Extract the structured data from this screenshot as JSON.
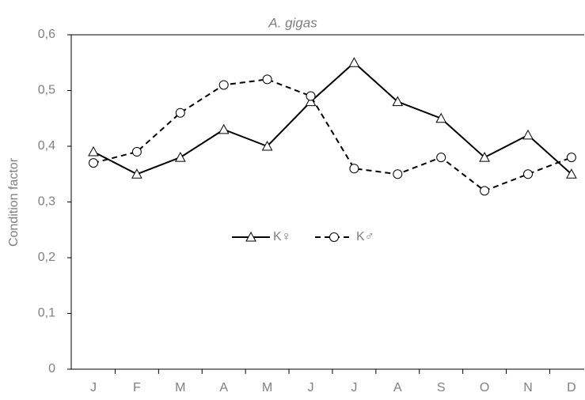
{
  "chart_data": {
    "type": "line",
    "title": "A. gigas",
    "y_label": "Condition factor",
    "categories": [
      "J",
      "F",
      "M",
      "A",
      "M",
      "J",
      "J",
      "A",
      "S",
      "O",
      "N",
      "D"
    ],
    "series": [
      {
        "name": "K♀",
        "color": "#000000",
        "marker": "triangle",
        "dashed": false,
        "values": [
          0.39,
          0.35,
          0.38,
          0.43,
          0.4,
          0.48,
          0.55,
          0.48,
          0.45,
          0.38,
          0.42,
          0.35
        ]
      },
      {
        "name": "K♂",
        "color": "#000000",
        "marker": "circle",
        "dashed": true,
        "values": [
          0.37,
          0.39,
          0.46,
          0.51,
          0.52,
          0.49,
          0.36,
          0.35,
          0.38,
          0.32,
          0.35,
          0.38
        ]
      }
    ],
    "ylim": [
      0,
      0.6
    ],
    "yticks": [
      0,
      {
        "value": 0.1,
        "label": "0,1"
      },
      {
        "value": 0.2,
        "label": "0,2"
      },
      {
        "value": 0.3,
        "label": "0,3"
      },
      {
        "value": 0.4,
        "label": "0,4"
      },
      {
        "value": 0.5,
        "label": "0,5"
      },
      {
        "value": 0.6,
        "label": "0,6"
      }
    ],
    "grid": false
  }
}
